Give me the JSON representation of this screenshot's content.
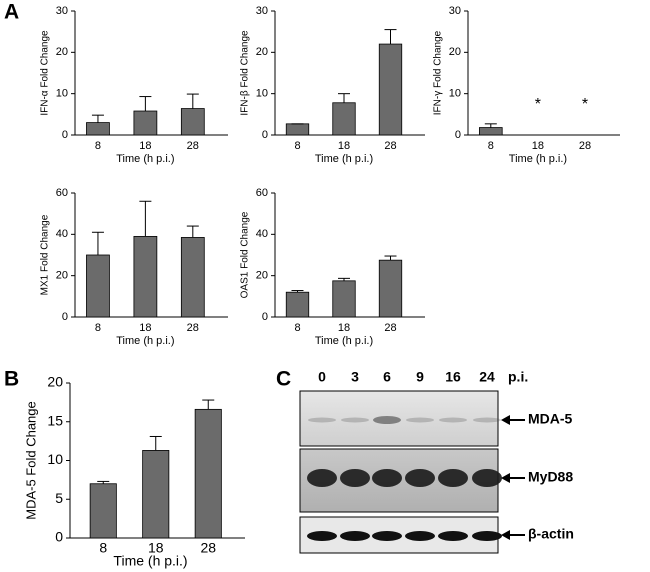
{
  "panel_labels": [
    "A",
    "B",
    "C"
  ],
  "chart_data": [
    {
      "type": "bar",
      "y_label": "IFN-α Fold Change",
      "x_label": "Time (h p.i.)",
      "categories": [
        "8",
        "18",
        "28"
      ],
      "values": [
        3,
        5.8,
        6.4
      ],
      "errors": [
        1.8,
        3.5,
        3.5
      ],
      "ylim": [
        0,
        30
      ],
      "yticks": [
        0,
        10,
        20,
        30
      ],
      "color": "#6b6b6b"
    },
    {
      "type": "bar",
      "y_label": "IFN-β Fold Change",
      "x_label": "Time (h p.i.)",
      "categories": [
        "8",
        "18",
        "28"
      ],
      "values": [
        2.7,
        7.8,
        22
      ],
      "errors": [
        0,
        2.2,
        3.5
      ],
      "ylim": [
        0,
        30
      ],
      "yticks": [
        0,
        10,
        20,
        30
      ],
      "color": "#6b6b6b"
    },
    {
      "type": "bar",
      "y_label": "IFN-γ Fold Change",
      "x_label": "Time (h p.i.)",
      "categories": [
        "8",
        "18",
        "28"
      ],
      "values": [
        1.8,
        null,
        null
      ],
      "errors": [
        0.9,
        null,
        null
      ],
      "annotations": [
        null,
        "*",
        "*"
      ],
      "ylim": [
        0,
        30
      ],
      "yticks": [
        0,
        10,
        20,
        30
      ],
      "color": "#6b6b6b"
    },
    {
      "type": "bar",
      "y_label": "MX1 Fold Change",
      "x_label": "Time (h p.i.)",
      "categories": [
        "8",
        "18",
        "28"
      ],
      "values": [
        30,
        39,
        38.5
      ],
      "errors": [
        11,
        17,
        5.5
      ],
      "ylim": [
        0,
        60
      ],
      "yticks": [
        0,
        20,
        40,
        60
      ],
      "color": "#6b6b6b"
    },
    {
      "type": "bar",
      "y_label": "OAS1 Fold Change",
      "x_label": "Time (h p.i.)",
      "categories": [
        "8",
        "18",
        "28"
      ],
      "values": [
        12,
        17.5,
        27.5
      ],
      "errors": [
        0.8,
        1.2,
        2
      ],
      "ylim": [
        0,
        60
      ],
      "yticks": [
        0,
        20,
        40,
        60
      ],
      "color": "#6b6b6b"
    },
    {
      "type": "bar",
      "y_label": "MDA-5 Fold Change",
      "x_label": "Time (h p.i.)",
      "categories": [
        "8",
        "18",
        "28"
      ],
      "values": [
        7,
        11.3,
        16.6
      ],
      "errors": [
        0.3,
        1.8,
        1.2
      ],
      "ylim": [
        0,
        20
      ],
      "yticks": [
        0,
        5,
        10,
        15,
        20
      ],
      "color": "#6b6b6b"
    }
  ],
  "blot": {
    "lanes": [
      "0",
      "3",
      "6",
      "9",
      "16",
      "24"
    ],
    "lane_unit": "p.i.",
    "bands": [
      "MDA-5",
      "MyD88",
      "β-actin"
    ]
  }
}
